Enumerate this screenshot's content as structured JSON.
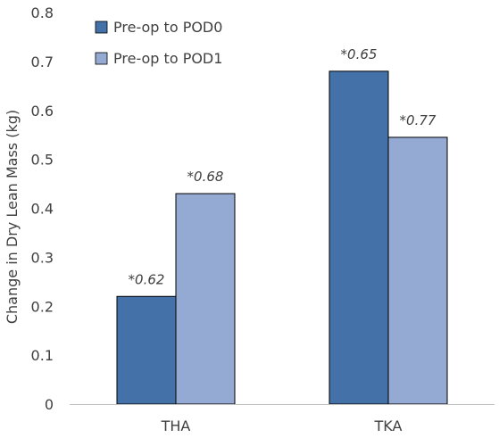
{
  "chart_data": {
    "type": "bar",
    "categories": [
      "THA",
      "TKA"
    ],
    "series": [
      {
        "name": "Pre-op to POD0",
        "values": [
          0.22,
          0.68
        ],
        "labels": [
          "*0.62",
          "*0.65"
        ],
        "color": "#4472a8"
      },
      {
        "name": "Pre-op to POD1",
        "values": [
          0.43,
          0.545
        ],
        "labels": [
          "*0.68",
          "*0.77"
        ],
        "color": "#95aad2"
      }
    ],
    "title": "",
    "xlabel": "",
    "ylabel": "Change in Dry Lean Mass (kg)",
    "ylim": [
      0,
      0.8
    ],
    "yticks": [
      "0",
      "0.1",
      "0.2",
      "0.3",
      "0.4",
      "0.5",
      "0.6",
      "0.7",
      "0.8"
    ],
    "grid": false,
    "legend": "top-left"
  }
}
